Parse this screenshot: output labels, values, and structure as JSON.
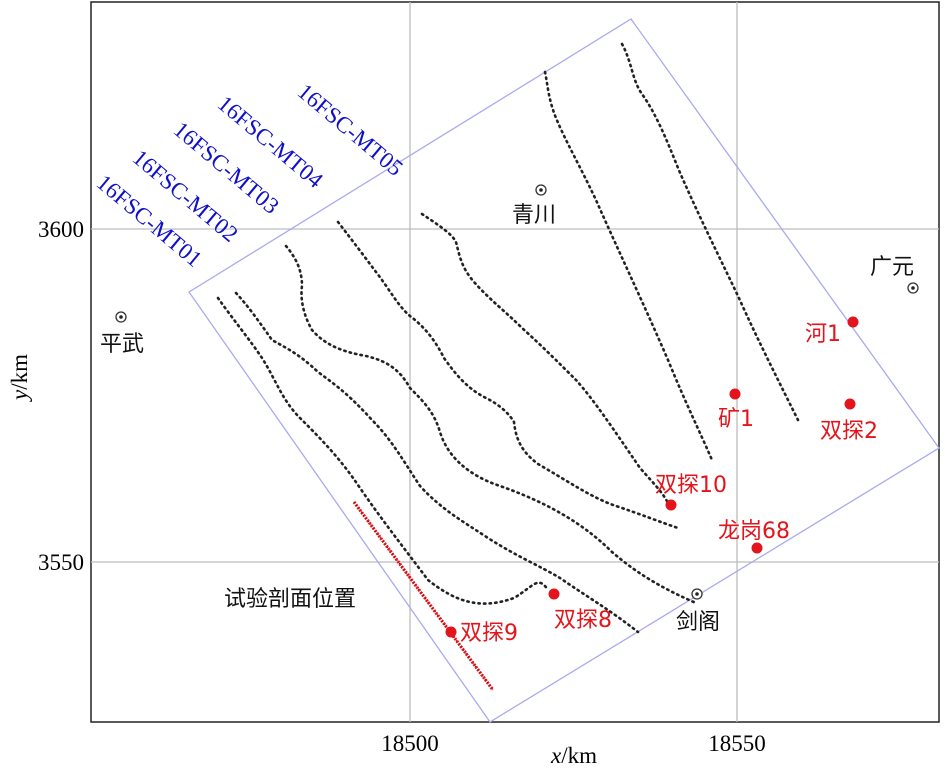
{
  "axes": {
    "x_label_italic": "x",
    "x_label_unit": "/km",
    "y_label_italic": "y",
    "y_label_unit": "/km",
    "x_ticks": [
      "18500",
      "18550"
    ],
    "y_ticks": [
      "3600",
      "3550"
    ]
  },
  "towns": [
    {
      "name": "青川"
    },
    {
      "name": "广元"
    },
    {
      "name": "平武"
    },
    {
      "name": "剑阁"
    }
  ],
  "wells": [
    {
      "name": "河1"
    },
    {
      "name": "矿1"
    },
    {
      "name": "双探2"
    },
    {
      "name": "双探10"
    },
    {
      "name": "龙岗68"
    },
    {
      "name": "双探8"
    },
    {
      "name": "双探9"
    }
  ],
  "survey_lines": [
    {
      "name": "16FSC-MT01"
    },
    {
      "name": "16FSC-MT02"
    },
    {
      "name": "16FSC-MT03"
    },
    {
      "name": "16FSC-MT04"
    },
    {
      "name": "16FSC-MT05"
    }
  ],
  "test_profile": {
    "label": "试验剖面位置"
  },
  "colors": {
    "well": "#e3141b",
    "line_label": "#1010c8",
    "boundary": "#a9a9ee",
    "grid": "#bdbdbd"
  }
}
